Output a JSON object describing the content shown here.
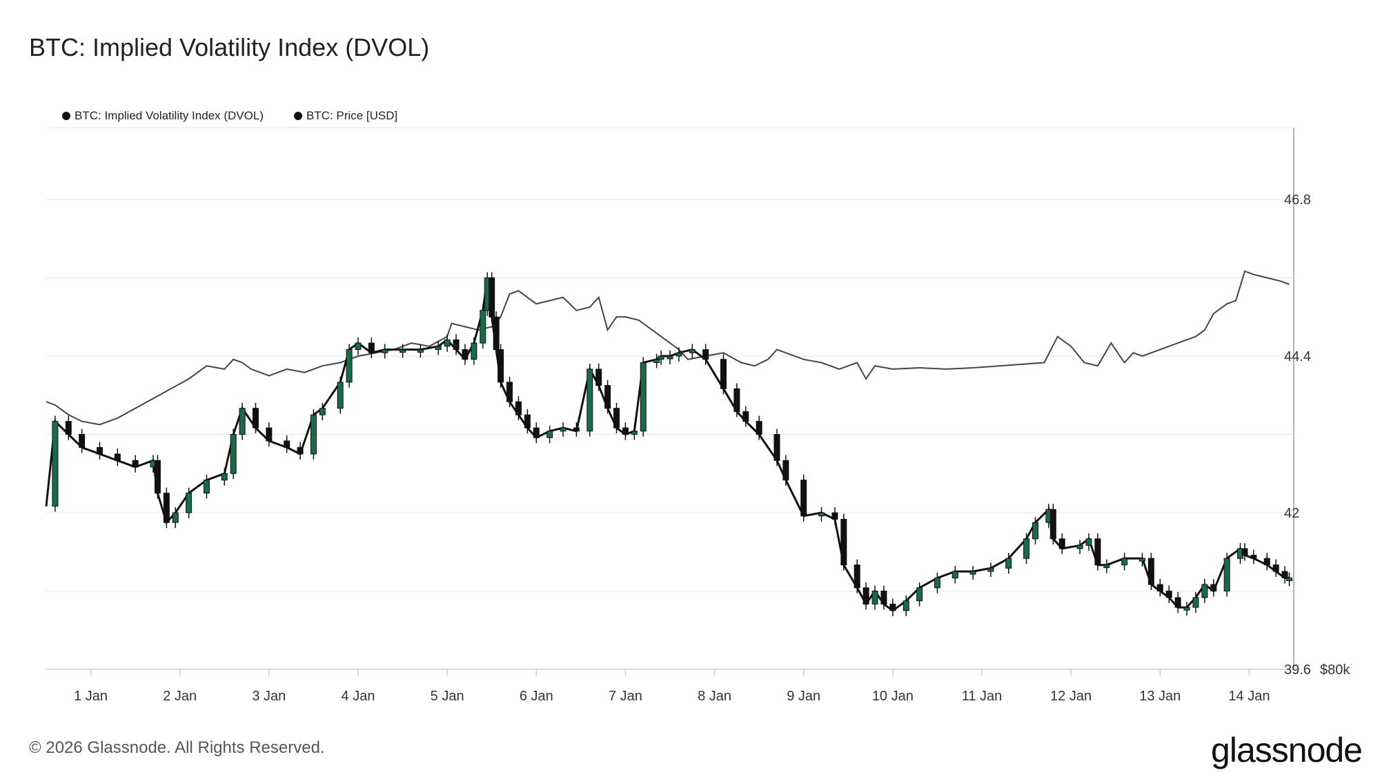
{
  "title": "BTC: Implied Volatility Index (DVOL)",
  "legend": [
    {
      "label": "BTC: Implied Volatility Index (DVOL)",
      "color": "#111111"
    },
    {
      "label": "BTC: Price [USD]",
      "color": "#111111"
    }
  ],
  "footer": "© 2026 Glassnode. All Rights Reserved.",
  "brand": "glassnode",
  "chart_data": {
    "type": "line",
    "title": "BTC: Implied Volatility Index (DVOL)",
    "x_tick_labels": [
      "1 Jan",
      "2 Jan",
      "3 Jan",
      "4 Jan",
      "5 Jan",
      "6 Jan",
      "7 Jan",
      "8 Jan",
      "9 Jan",
      "10 Jan",
      "11 Jan",
      "12 Jan",
      "13 Jan",
      "14 Jan"
    ],
    "y_tick_labels": [
      "46.8",
      "44.4",
      "42",
      "39.6"
    ],
    "y2_tick_label": "$80k",
    "ylim": [
      39.6,
      47.9
    ],
    "xlim": [
      0.5,
      14.5
    ],
    "grid": true,
    "legend_position": "top-left",
    "series": [
      {
        "name": "BTC: Implied Volatility Index (DVOL)",
        "style": "line",
        "color": "#444444",
        "x": [
          0.5,
          0.6,
          0.75,
          0.9,
          1.1,
          1.3,
          1.5,
          1.7,
          1.9,
          2.1,
          2.3,
          2.5,
          2.6,
          2.7,
          2.8,
          3.0,
          3.2,
          3.4,
          3.6,
          3.8,
          4.0,
          4.2,
          4.4,
          4.6,
          4.8,
          5.0,
          5.05,
          5.2,
          5.35,
          5.5,
          5.6,
          5.7,
          5.8,
          5.9,
          6.0,
          6.15,
          6.3,
          6.45,
          6.6,
          6.7,
          6.8,
          6.9,
          7.0,
          7.15,
          7.3,
          7.4,
          7.5,
          7.6,
          7.7,
          7.9,
          8.1,
          8.3,
          8.45,
          8.6,
          8.7,
          8.8,
          9.0,
          9.2,
          9.4,
          9.6,
          9.7,
          9.8,
          10.0,
          10.3,
          10.6,
          10.9,
          11.2,
          11.5,
          11.7,
          11.85,
          12.0,
          12.15,
          12.3,
          12.45,
          12.6,
          12.7,
          12.8,
          13.0,
          13.2,
          13.4,
          13.5,
          13.6,
          13.75,
          13.85,
          13.95,
          14.05,
          14.2,
          14.35,
          14.45
        ],
        "y": [
          43.7,
          43.65,
          43.5,
          43.4,
          43.35,
          43.45,
          43.6,
          43.75,
          43.9,
          44.05,
          44.25,
          44.2,
          44.35,
          44.3,
          44.2,
          44.1,
          44.2,
          44.15,
          44.25,
          44.3,
          44.4,
          44.45,
          44.5,
          44.6,
          44.55,
          44.7,
          44.9,
          44.85,
          44.8,
          44.85,
          45.0,
          45.35,
          45.4,
          45.3,
          45.2,
          45.25,
          45.3,
          45.1,
          45.15,
          45.3,
          44.8,
          45.0,
          45.0,
          44.95,
          44.8,
          44.7,
          44.6,
          44.5,
          44.35,
          44.4,
          44.45,
          44.3,
          44.25,
          44.35,
          44.5,
          44.45,
          44.35,
          44.3,
          44.2,
          44.3,
          44.05,
          44.25,
          44.2,
          44.22,
          44.2,
          44.22,
          44.25,
          44.28,
          44.3,
          44.7,
          44.55,
          44.3,
          44.25,
          44.6,
          44.3,
          44.45,
          44.4,
          44.5,
          44.6,
          44.7,
          44.8,
          45.05,
          45.2,
          45.25,
          45.7,
          45.65,
          45.6,
          45.55,
          45.5
        ]
      },
      {
        "name": "BTC: Price [USD]",
        "style": "candlestick",
        "color": "#111111",
        "up_color": "#1a6b4a",
        "x": [
          0.5,
          0.6,
          0.75,
          0.9,
          1.1,
          1.3,
          1.5,
          1.7,
          1.75,
          1.85,
          1.95,
          2.1,
          2.3,
          2.5,
          2.6,
          2.7,
          2.85,
          3.0,
          3.2,
          3.35,
          3.5,
          3.6,
          3.8,
          3.9,
          4.0,
          4.15,
          4.3,
          4.5,
          4.7,
          4.9,
          5.0,
          5.1,
          5.2,
          5.3,
          5.4,
          5.45,
          5.5,
          5.55,
          5.6,
          5.7,
          5.8,
          5.9,
          6.0,
          6.15,
          6.3,
          6.45,
          6.6,
          6.7,
          6.8,
          6.9,
          7.0,
          7.1,
          7.2,
          7.35,
          7.4,
          7.5,
          7.6,
          7.75,
          7.9,
          8.1,
          8.25,
          8.35,
          8.5,
          8.7,
          8.8,
          9.0,
          9.2,
          9.35,
          9.45,
          9.6,
          9.7,
          9.8,
          9.9,
          10.0,
          10.15,
          10.3,
          10.5,
          10.7,
          10.9,
          11.1,
          11.3,
          11.5,
          11.6,
          11.75,
          11.8,
          11.9,
          12.1,
          12.2,
          12.3,
          12.4,
          12.6,
          12.8,
          12.9,
          13.0,
          13.1,
          13.2,
          13.3,
          13.4,
          13.5,
          13.6,
          13.75,
          13.9,
          13.95,
          14.05,
          14.2,
          14.3,
          14.4,
          14.45
        ],
        "y": [
          42.1,
          43.4,
          43.2,
          43.0,
          42.9,
          42.8,
          42.7,
          42.8,
          42.3,
          41.85,
          42.0,
          42.3,
          42.5,
          42.6,
          43.2,
          43.6,
          43.3,
          43.1,
          43.0,
          42.9,
          43.5,
          43.6,
          44.0,
          44.5,
          44.6,
          44.45,
          44.5,
          44.5,
          44.5,
          44.55,
          44.65,
          44.5,
          44.35,
          44.6,
          45.1,
          45.6,
          45.0,
          44.5,
          44.0,
          43.7,
          43.5,
          43.3,
          43.15,
          43.25,
          43.3,
          43.25,
          44.2,
          43.95,
          43.6,
          43.3,
          43.2,
          43.25,
          44.3,
          44.35,
          44.4,
          44.4,
          44.45,
          44.5,
          44.35,
          43.9,
          43.55,
          43.4,
          43.2,
          42.8,
          42.5,
          41.95,
          42.0,
          41.9,
          41.2,
          40.85,
          40.6,
          40.8,
          40.6,
          40.5,
          40.65,
          40.85,
          41.0,
          41.1,
          41.1,
          41.15,
          41.3,
          41.6,
          41.85,
          42.05,
          41.6,
          41.45,
          41.5,
          41.6,
          41.2,
          41.2,
          41.3,
          41.3,
          40.9,
          40.8,
          40.7,
          40.55,
          40.55,
          40.7,
          40.9,
          40.8,
          41.3,
          41.45,
          41.35,
          41.3,
          41.2,
          41.1,
          41.0,
          41.0
        ]
      }
    ]
  }
}
